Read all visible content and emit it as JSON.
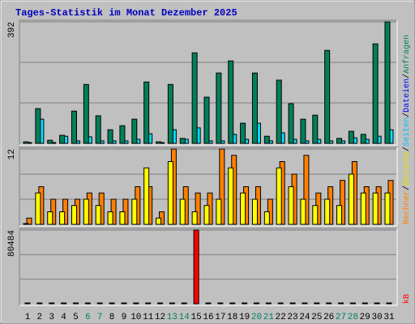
{
  "title": "Tages-Statistik im Monat Dezember 2025",
  "legend": {
    "separator": "/",
    "items": [
      {
        "name": "kB",
        "color": "#ff0000"
      },
      {
        "name": "Rechner",
        "color": "#ff8000"
      },
      {
        "name": "Besuche",
        "color": "#e0e000"
      },
      {
        "name": "Seiten",
        "color": "#00c0ff"
      },
      {
        "name": "Dateien",
        "color": "#0000ff"
      },
      {
        "name": "Anfragen",
        "color": "#008060"
      }
    ]
  },
  "chart_data": [
    {
      "type": "bar",
      "ylim": [
        0,
        392
      ],
      "yticks": [
        392
      ],
      "grid_divisions": 3,
      "series": [
        {
          "color": "#00805c",
          "values": [
            5,
            112,
            10,
            26,
            104,
            190,
            89,
            44,
            57,
            78,
            198,
            5,
            190,
            16,
            292,
            149,
            227,
            266,
            65,
            227,
            23,
            204,
            128,
            78,
            91,
            300,
            16,
            39,
            29,
            321,
            392
          ]
        },
        {
          "color": "#00e0ff",
          "values": [
            0,
            78,
            2,
            23,
            8,
            21,
            8,
            8,
            8,
            13,
            31,
            0,
            44,
            13,
            50,
            8,
            8,
            29,
            13,
            65,
            8,
            34,
            13,
            8,
            13,
            8,
            8,
            18,
            13,
            23,
            44
          ]
        }
      ]
    },
    {
      "type": "bar",
      "ylim": [
        0,
        12
      ],
      "yticks": [
        12
      ],
      "grid_divisions": 3,
      "series": [
        {
          "color": "#ffff00",
          "values": [
            0,
            5,
            2,
            2,
            3,
            4,
            3,
            2,
            2,
            4,
            9,
            1,
            10,
            4,
            2,
            3,
            4,
            9,
            5,
            4,
            2,
            9,
            6,
            4,
            3,
            4,
            3,
            8,
            5,
            5,
            5
          ]
        },
        {
          "color": "#ff8000",
          "values": [
            1,
            6,
            4,
            4,
            4,
            5,
            5,
            4,
            4,
            6,
            6,
            2,
            12,
            6,
            5,
            5,
            12,
            11,
            6,
            6,
            4,
            10,
            8,
            11,
            5,
            6,
            7,
            10,
            6,
            6,
            7
          ]
        }
      ]
    },
    {
      "type": "bar",
      "ylim": [
        0,
        80484
      ],
      "yticks": [
        80484
      ],
      "grid_divisions": 3,
      "categories": [
        "1",
        "2",
        "3",
        "4",
        "5",
        "6",
        "7",
        "8",
        "9",
        "10",
        "11",
        "12",
        "13",
        "14",
        "15",
        "16",
        "17",
        "18",
        "19",
        "20",
        "21",
        "22",
        "23",
        "24",
        "25",
        "26",
        "27",
        "28",
        "29",
        "30",
        "31"
      ],
      "category_colors": [
        "#000000",
        "#000000",
        "#000000",
        "#000000",
        "#000000",
        "#008060",
        "#008060",
        "#000000",
        "#000000",
        "#000000",
        "#000000",
        "#000000",
        "#008060",
        "#008060",
        "#000000",
        "#000000",
        "#000000",
        "#000000",
        "#000000",
        "#008060",
        "#008060",
        "#000000",
        "#000000",
        "#000000",
        "#000000",
        "#000000",
        "#008060",
        "#008060",
        "#000000",
        "#000000",
        "#000000"
      ],
      "series": [
        {
          "color": "#ff0000",
          "values": [
            0,
            0,
            0,
            0,
            0,
            0,
            0,
            0,
            0,
            0,
            0,
            0,
            0,
            0,
            80484,
            0,
            0,
            0,
            0,
            0,
            0,
            0,
            0,
            0,
            0,
            0,
            0,
            0,
            0,
            0,
            0
          ]
        }
      ]
    }
  ]
}
